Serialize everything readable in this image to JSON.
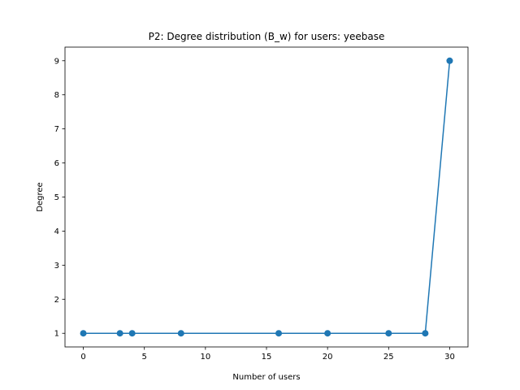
{
  "chart_data": {
    "type": "line",
    "title": "P2: Degree distribution (B_w) for users: yeebase",
    "xlabel": "Number of users",
    "ylabel": "Degree",
    "xlim": [
      -1.5,
      31.5
    ],
    "ylim": [
      0.6,
      9.4
    ],
    "xticks": [
      0,
      5,
      10,
      15,
      20,
      25,
      30
    ],
    "yticks": [
      1,
      2,
      3,
      4,
      5,
      6,
      7,
      8,
      9
    ],
    "grid": false,
    "series": [
      {
        "color": "#1f77b4",
        "marker": "circle",
        "x": [
          0,
          3,
          4,
          8,
          16,
          20,
          25,
          28,
          30
        ],
        "y": [
          1,
          1,
          1,
          1,
          1,
          1,
          1,
          1,
          9
        ]
      }
    ]
  }
}
